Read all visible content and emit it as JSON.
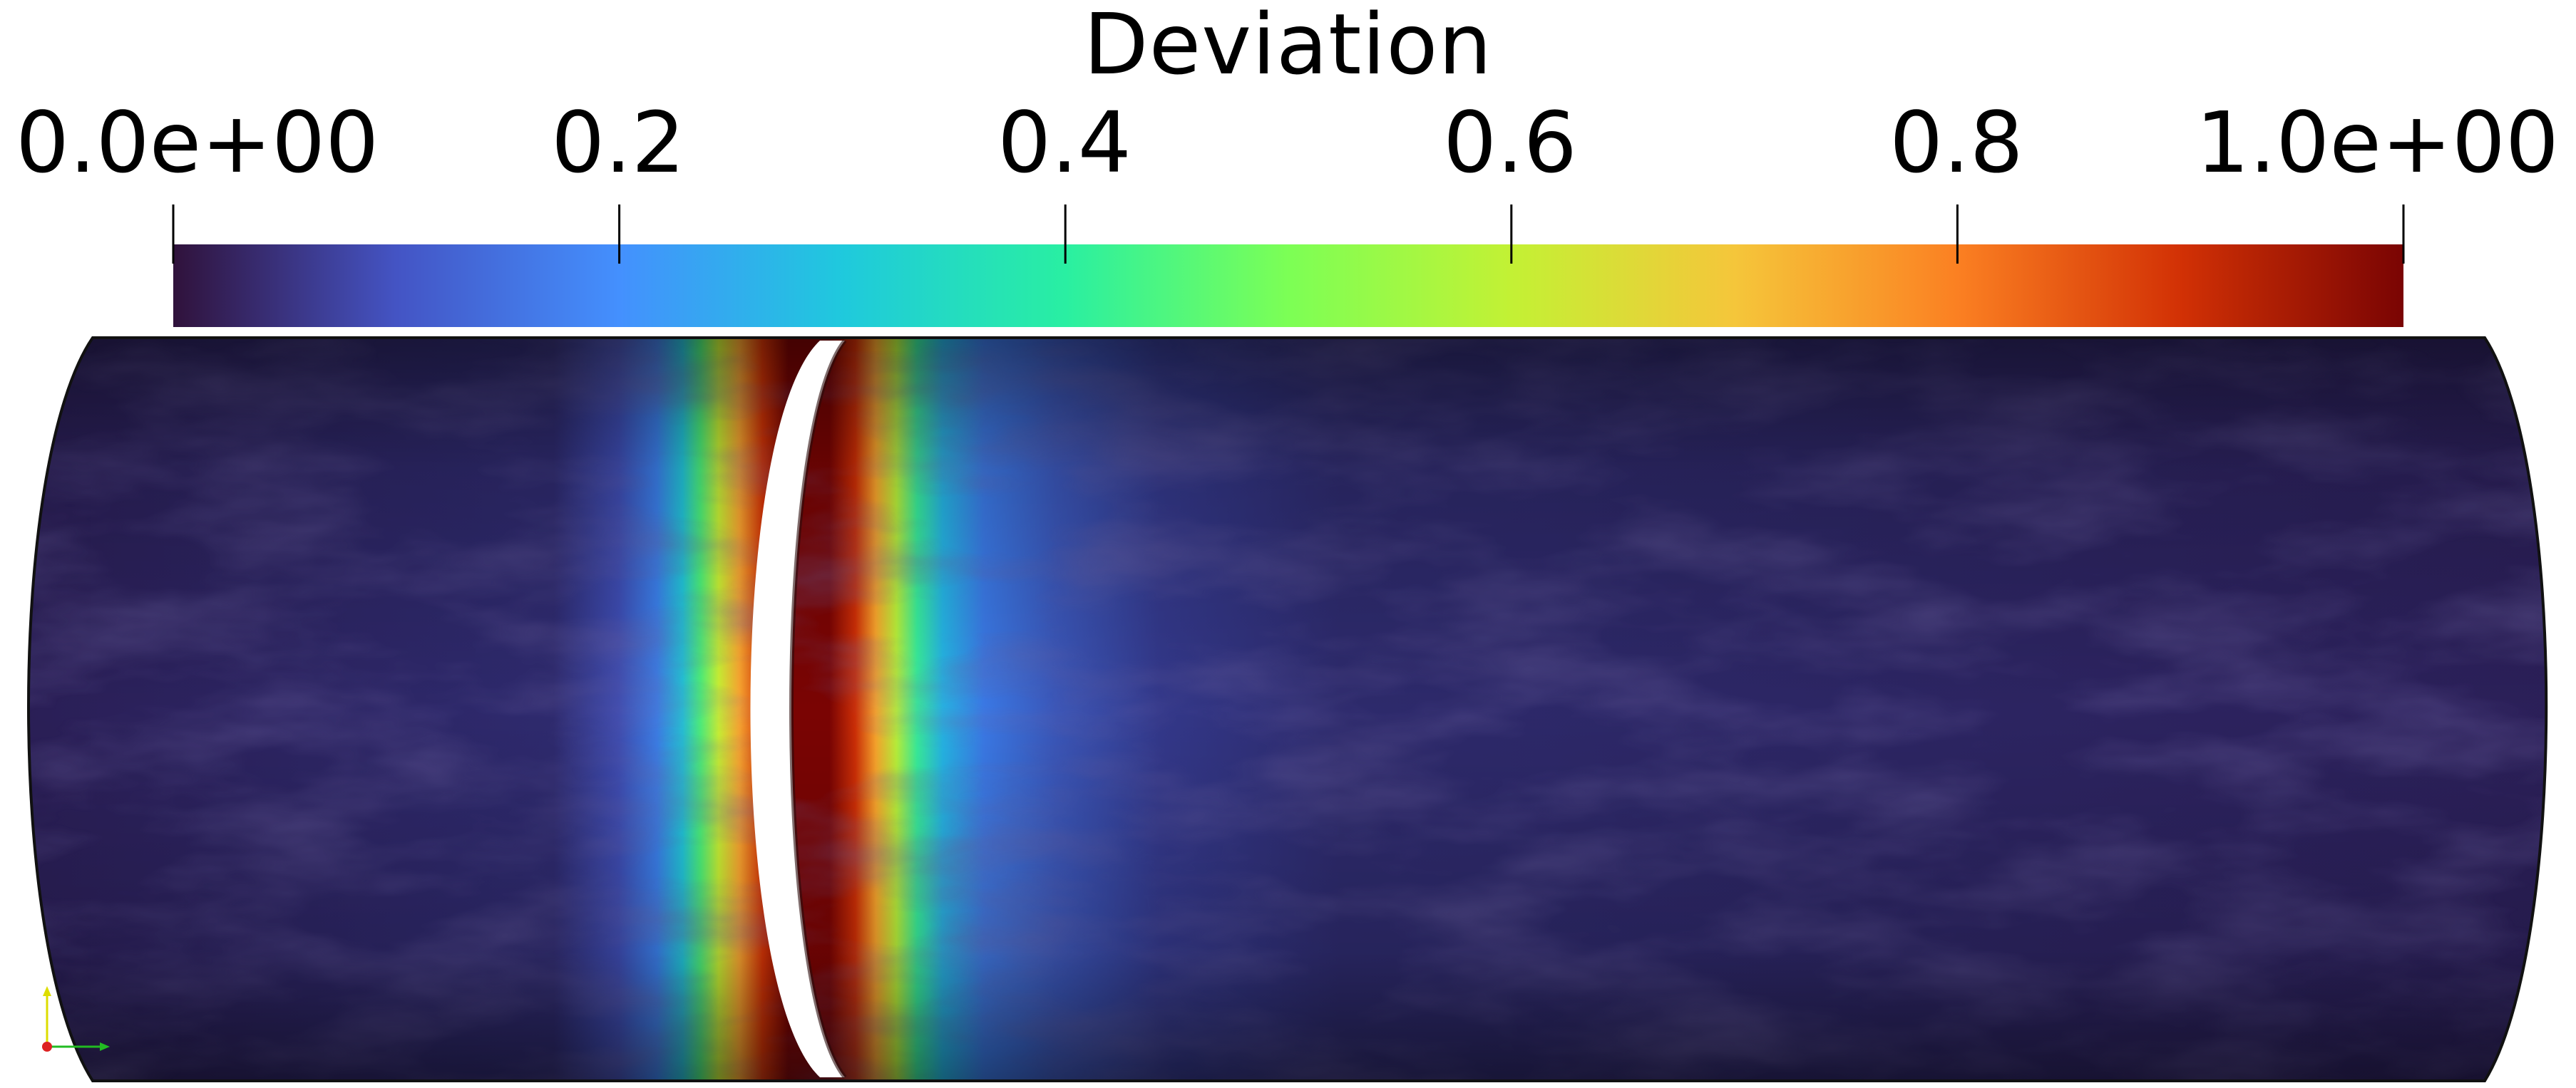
{
  "legend": {
    "title": "Deviation",
    "colormap": "turbo",
    "range": [
      0.0,
      1.0
    ],
    "ticks": [
      {
        "value": 0.0,
        "label": "0.0e+00"
      },
      {
        "value": 0.2,
        "label": "0.2"
      },
      {
        "value": 0.4,
        "label": "0.4"
      },
      {
        "value": 0.6,
        "label": "0.6"
      },
      {
        "value": 0.8,
        "label": "0.8"
      },
      {
        "value": 1.0,
        "label": "1.0e+00"
      }
    ],
    "stops": [
      {
        "value": 0.0,
        "color": "#30123b"
      },
      {
        "value": 0.1,
        "color": "#4454c4"
      },
      {
        "value": 0.2,
        "color": "#4490fe"
      },
      {
        "value": 0.3,
        "color": "#1fc9dd"
      },
      {
        "value": 0.4,
        "color": "#29efa2"
      },
      {
        "value": 0.5,
        "color": "#7cff55"
      },
      {
        "value": 0.6,
        "color": "#c3f134"
      },
      {
        "value": 0.7,
        "color": "#f5c63a"
      },
      {
        "value": 0.8,
        "color": "#fb8022"
      },
      {
        "value": 0.9,
        "color": "#d23105"
      },
      {
        "value": 1.0,
        "color": "#7a0403"
      }
    ]
  },
  "scene": {
    "object": "cylinder",
    "background_color": "#ffffff",
    "surface_base_color": "#2c1f5a",
    "orientation_axes": {
      "x_color": "#22bb22",
      "y_color": "#dddd00",
      "z_color": "#dd2222"
    }
  }
}
